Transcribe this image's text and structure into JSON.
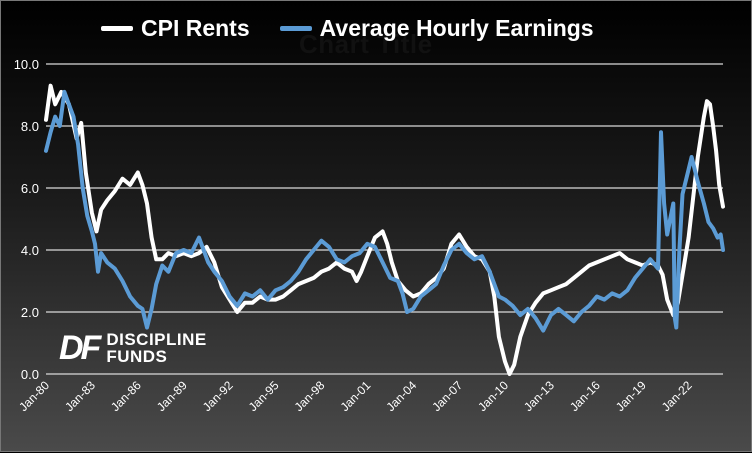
{
  "chart_data": {
    "type": "line",
    "title": "",
    "background_title": "Chart Title",
    "xlabel": "",
    "ylabel": "",
    "ylim": [
      0,
      10
    ],
    "y_ticks": [
      "0.0",
      "2.0",
      "4.0",
      "6.0",
      "8.0",
      "10.0"
    ],
    "x_ticks": [
      "Jan-80",
      "Jan-83",
      "Jan-86",
      "Jan-89",
      "Jan-92",
      "Jan-95",
      "Jan-98",
      "Jan-01",
      "Jan-04",
      "Jan-07",
      "Jan-10",
      "Jan-13",
      "Jan-16",
      "Jan-19",
      "Jan-22"
    ],
    "xlim": [
      1980.0,
      2024.25
    ],
    "grid": "horizontal",
    "legend_position": "top",
    "logo": {
      "mark": "DF",
      "line1": "DISCIPLINE",
      "line2": "FUNDS"
    },
    "series": [
      {
        "name": "CPI Rents",
        "color": "#ffffff",
        "points": [
          [
            1980.0,
            8.2
          ],
          [
            1980.3,
            9.3
          ],
          [
            1980.6,
            8.7
          ],
          [
            1981.0,
            9.1
          ],
          [
            1981.5,
            8.7
          ],
          [
            1982.0,
            7.6
          ],
          [
            1982.3,
            8.1
          ],
          [
            1982.6,
            6.5
          ],
          [
            1983.0,
            5.2
          ],
          [
            1983.3,
            4.6
          ],
          [
            1983.6,
            5.3
          ],
          [
            1984.0,
            5.6
          ],
          [
            1984.5,
            5.9
          ],
          [
            1985.0,
            6.3
          ],
          [
            1985.5,
            6.1
          ],
          [
            1986.0,
            6.5
          ],
          [
            1986.3,
            6.1
          ],
          [
            1986.6,
            5.5
          ],
          [
            1986.9,
            4.4
          ],
          [
            1987.2,
            3.7
          ],
          [
            1987.6,
            3.7
          ],
          [
            1988.0,
            3.9
          ],
          [
            1988.5,
            3.8
          ],
          [
            1989.0,
            3.9
          ],
          [
            1989.5,
            3.8
          ],
          [
            1990.0,
            3.9
          ],
          [
            1990.5,
            4.1
          ],
          [
            1991.0,
            3.6
          ],
          [
            1991.5,
            2.8
          ],
          [
            1992.0,
            2.4
          ],
          [
            1992.5,
            2.0
          ],
          [
            1993.0,
            2.3
          ],
          [
            1993.5,
            2.3
          ],
          [
            1994.0,
            2.5
          ],
          [
            1994.5,
            2.4
          ],
          [
            1995.0,
            2.4
          ],
          [
            1995.5,
            2.5
          ],
          [
            1996.0,
            2.7
          ],
          [
            1996.5,
            2.9
          ],
          [
            1997.0,
            3.0
          ],
          [
            1997.5,
            3.1
          ],
          [
            1998.0,
            3.3
          ],
          [
            1998.5,
            3.4
          ],
          [
            1999.0,
            3.6
          ],
          [
            1999.5,
            3.4
          ],
          [
            2000.0,
            3.3
          ],
          [
            2000.3,
            3.0
          ],
          [
            2000.6,
            3.3
          ],
          [
            2001.0,
            3.8
          ],
          [
            2001.5,
            4.4
          ],
          [
            2002.0,
            4.6
          ],
          [
            2002.3,
            4.2
          ],
          [
            2002.6,
            3.6
          ],
          [
            2003.0,
            3.0
          ],
          [
            2003.5,
            2.7
          ],
          [
            2004.0,
            2.5
          ],
          [
            2004.5,
            2.6
          ],
          [
            2005.0,
            2.9
          ],
          [
            2005.5,
            3.1
          ],
          [
            2006.0,
            3.4
          ],
          [
            2006.5,
            4.2
          ],
          [
            2007.0,
            4.5
          ],
          [
            2007.5,
            4.1
          ],
          [
            2008.0,
            3.8
          ],
          [
            2008.5,
            3.7
          ],
          [
            2009.0,
            3.3
          ],
          [
            2009.3,
            2.5
          ],
          [
            2009.6,
            1.2
          ],
          [
            2010.0,
            0.4
          ],
          [
            2010.3,
            0.0
          ],
          [
            2010.6,
            0.3
          ],
          [
            2011.0,
            1.2
          ],
          [
            2011.5,
            1.9
          ],
          [
            2012.0,
            2.3
          ],
          [
            2012.5,
            2.6
          ],
          [
            2013.0,
            2.7
          ],
          [
            2013.5,
            2.8
          ],
          [
            2014.0,
            2.9
          ],
          [
            2014.5,
            3.1
          ],
          [
            2015.0,
            3.3
          ],
          [
            2015.5,
            3.5
          ],
          [
            2016.0,
            3.6
          ],
          [
            2016.5,
            3.7
          ],
          [
            2017.0,
            3.8
          ],
          [
            2017.5,
            3.9
          ],
          [
            2018.0,
            3.7
          ],
          [
            2018.5,
            3.6
          ],
          [
            2019.0,
            3.5
          ],
          [
            2019.5,
            3.6
          ],
          [
            2020.0,
            3.5
          ],
          [
            2020.3,
            3.2
          ],
          [
            2020.6,
            2.4
          ],
          [
            2021.0,
            1.9
          ],
          [
            2021.3,
            2.3
          ],
          [
            2021.6,
            3.2
          ],
          [
            2022.0,
            4.4
          ],
          [
            2022.3,
            5.7
          ],
          [
            2022.6,
            7.0
          ],
          [
            2023.0,
            8.3
          ],
          [
            2023.2,
            8.8
          ],
          [
            2023.4,
            8.7
          ],
          [
            2023.6,
            8.0
          ],
          [
            2023.8,
            7.2
          ],
          [
            2024.0,
            6.1
          ],
          [
            2024.25,
            5.4
          ]
        ]
      },
      {
        "name": "Average Hourly Earnings",
        "color": "#5b9bd5",
        "points": [
          [
            1980.0,
            7.2
          ],
          [
            1980.3,
            7.8
          ],
          [
            1980.6,
            8.3
          ],
          [
            1980.9,
            8.0
          ],
          [
            1981.2,
            9.1
          ],
          [
            1981.5,
            8.7
          ],
          [
            1981.8,
            8.3
          ],
          [
            1982.1,
            7.4
          ],
          [
            1982.4,
            6.0
          ],
          [
            1982.7,
            5.1
          ],
          [
            1983.0,
            4.6
          ],
          [
            1983.2,
            4.2
          ],
          [
            1983.4,
            3.3
          ],
          [
            1983.6,
            3.9
          ],
          [
            1984.0,
            3.6
          ],
          [
            1984.5,
            3.4
          ],
          [
            1985.0,
            3.0
          ],
          [
            1985.5,
            2.5
          ],
          [
            1986.0,
            2.2
          ],
          [
            1986.3,
            2.1
          ],
          [
            1986.6,
            1.5
          ],
          [
            1986.9,
            2.1
          ],
          [
            1987.2,
            2.9
          ],
          [
            1987.6,
            3.5
          ],
          [
            1988.0,
            3.3
          ],
          [
            1988.5,
            3.9
          ],
          [
            1989.0,
            4.0
          ],
          [
            1989.5,
            3.9
          ],
          [
            1990.0,
            4.4
          ],
          [
            1990.3,
            4.0
          ],
          [
            1990.6,
            3.6
          ],
          [
            1991.0,
            3.3
          ],
          [
            1991.5,
            3.0
          ],
          [
            1992.0,
            2.5
          ],
          [
            1992.5,
            2.2
          ],
          [
            1993.0,
            2.6
          ],
          [
            1993.5,
            2.5
          ],
          [
            1994.0,
            2.7
          ],
          [
            1994.5,
            2.4
          ],
          [
            1995.0,
            2.7
          ],
          [
            1995.5,
            2.8
          ],
          [
            1996.0,
            3.0
          ],
          [
            1996.5,
            3.3
          ],
          [
            1997.0,
            3.7
          ],
          [
            1997.5,
            4.0
          ],
          [
            1998.0,
            4.3
          ],
          [
            1998.5,
            4.1
          ],
          [
            1999.0,
            3.7
          ],
          [
            1999.5,
            3.6
          ],
          [
            2000.0,
            3.8
          ],
          [
            2000.5,
            3.9
          ],
          [
            2001.0,
            4.2
          ],
          [
            2001.5,
            4.1
          ],
          [
            2002.0,
            3.6
          ],
          [
            2002.5,
            3.1
          ],
          [
            2003.0,
            3.0
          ],
          [
            2003.3,
            2.6
          ],
          [
            2003.6,
            2.0
          ],
          [
            2004.0,
            2.1
          ],
          [
            2004.5,
            2.5
          ],
          [
            2005.0,
            2.7
          ],
          [
            2005.5,
            2.9
          ],
          [
            2006.0,
            3.5
          ],
          [
            2006.5,
            4.0
          ],
          [
            2007.0,
            4.2
          ],
          [
            2007.5,
            3.9
          ],
          [
            2008.0,
            3.7
          ],
          [
            2008.5,
            3.8
          ],
          [
            2009.0,
            3.3
          ],
          [
            2009.3,
            2.9
          ],
          [
            2009.6,
            2.5
          ],
          [
            2010.0,
            2.4
          ],
          [
            2010.5,
            2.2
          ],
          [
            2011.0,
            1.9
          ],
          [
            2011.5,
            2.1
          ],
          [
            2012.0,
            1.8
          ],
          [
            2012.5,
            1.4
          ],
          [
            2013.0,
            1.9
          ],
          [
            2013.5,
            2.1
          ],
          [
            2014.0,
            1.9
          ],
          [
            2014.5,
            1.7
          ],
          [
            2015.0,
            2.0
          ],
          [
            2015.5,
            2.2
          ],
          [
            2016.0,
            2.5
          ],
          [
            2016.5,
            2.4
          ],
          [
            2017.0,
            2.6
          ],
          [
            2017.5,
            2.5
          ],
          [
            2018.0,
            2.7
          ],
          [
            2018.5,
            3.1
          ],
          [
            2019.0,
            3.4
          ],
          [
            2019.5,
            3.7
          ],
          [
            2020.0,
            3.4
          ],
          [
            2020.2,
            7.8
          ],
          [
            2020.4,
            5.5
          ],
          [
            2020.6,
            4.5
          ],
          [
            2020.8,
            5.0
          ],
          [
            2021.0,
            5.5
          ],
          [
            2021.1,
            1.8
          ],
          [
            2021.2,
            1.5
          ],
          [
            2021.4,
            4.0
          ],
          [
            2021.6,
            5.8
          ],
          [
            2022.0,
            6.6
          ],
          [
            2022.2,
            7.0
          ],
          [
            2022.4,
            6.6
          ],
          [
            2022.6,
            6.2
          ],
          [
            2023.0,
            5.5
          ],
          [
            2023.3,
            4.9
          ],
          [
            2023.6,
            4.7
          ],
          [
            2023.9,
            4.4
          ],
          [
            2024.1,
            4.5
          ],
          [
            2024.25,
            4.0
          ]
        ]
      }
    ]
  }
}
